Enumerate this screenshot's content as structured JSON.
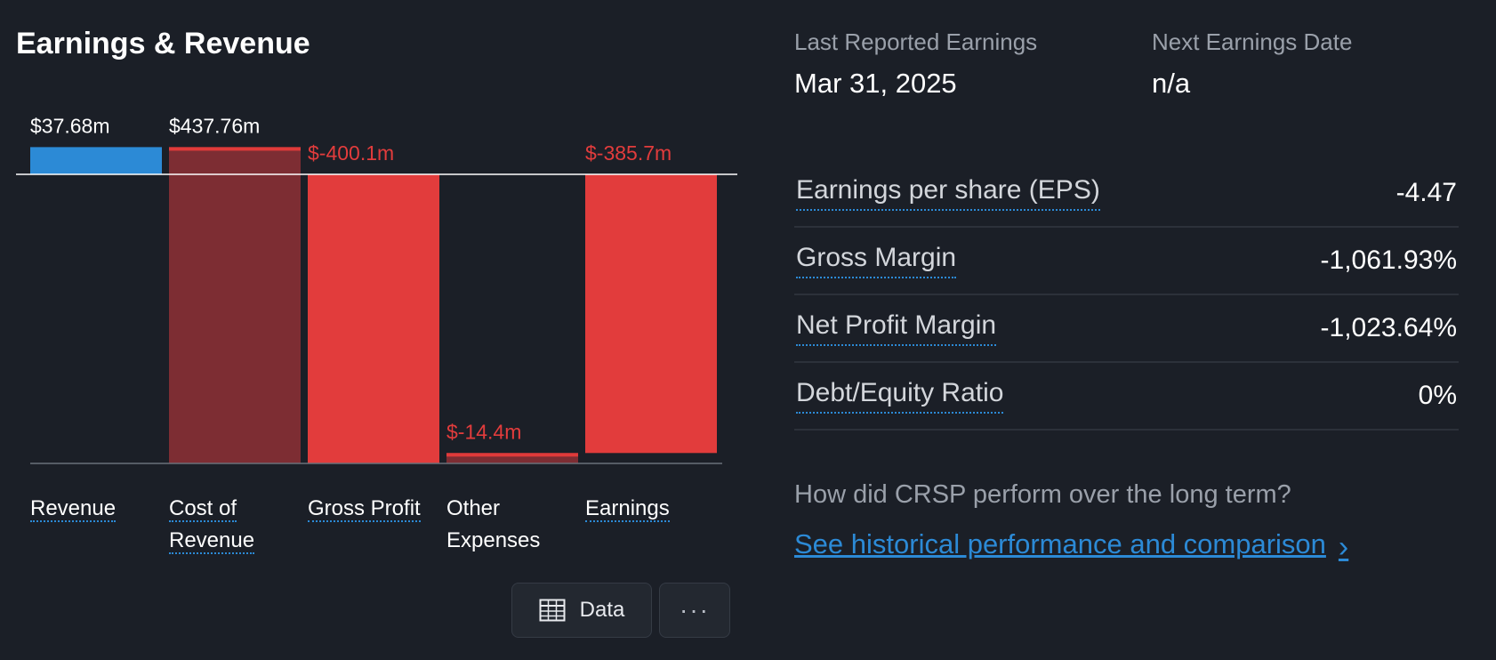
{
  "header": {
    "title": "Earnings & Revenue"
  },
  "chart_data": {
    "type": "bar",
    "subtype": "waterfall",
    "categories": [
      "Revenue",
      "Cost of Revenue",
      "Gross Profit",
      "Other Expenses",
      "Earnings"
    ],
    "category_label_lines": [
      [
        "Revenue"
      ],
      [
        "Cost of",
        "Revenue"
      ],
      [
        "Gross Profit"
      ],
      [
        "Other",
        "Expenses"
      ],
      [
        "Earnings"
      ]
    ],
    "values": [
      37.68,
      437.76,
      -400.1,
      -14.4,
      -385.7
    ],
    "data_labels": [
      "$37.68m",
      "$437.76m",
      "$-400.1m",
      "$-14.4m",
      "$-385.7m"
    ],
    "units": "m",
    "colors": {
      "revenue": "#2c8ad6",
      "cost": "#7d2d33",
      "cost_edge": "#e03a3a",
      "negative": "#e23c3c",
      "positive_label": "#ffffff",
      "negative_label": "#e23c3c",
      "zero_line": "#ffffff",
      "baseline": "#6a707a"
    },
    "ylim": [
      -400.1,
      37.68
    ],
    "grid": false,
    "legend": "none"
  },
  "buttons": {
    "data_label": "Data",
    "more_label": "···"
  },
  "meta": {
    "last_reported_label": "Last Reported Earnings",
    "last_reported_value": "Mar 31, 2025",
    "next_date_label": "Next Earnings Date",
    "next_date_value": "n/a"
  },
  "stats": [
    {
      "label": "Earnings per share (EPS)",
      "value": "-4.47"
    },
    {
      "label": "Gross Margin",
      "value": "-1,061.93%"
    },
    {
      "label": "Net Profit Margin",
      "value": "-1,023.64%"
    },
    {
      "label": "Debt/Equity Ratio",
      "value": "0%"
    }
  ],
  "footer": {
    "question": "How did CRSP perform over the long term?",
    "link_label": "See historical performance and comparison"
  }
}
